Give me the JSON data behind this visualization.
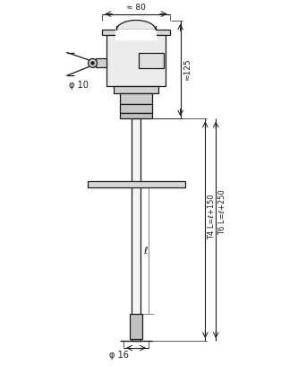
{
  "bg_color": "#ffffff",
  "line_color": "#1a1a1a",
  "fig_width": 3.14,
  "fig_height": 4.36,
  "dpi": 100,
  "dim_80_text": "≈ 80",
  "dim_125_text": "≈125",
  "dim_phi10_text": "φ 10",
  "dim_phi16_text": "φ 16",
  "dim_T4_text": "T4 L=ℓ+150",
  "dim_T6_text": "T6 L=ℓ+250",
  "dim_l_text": "ℓ"
}
